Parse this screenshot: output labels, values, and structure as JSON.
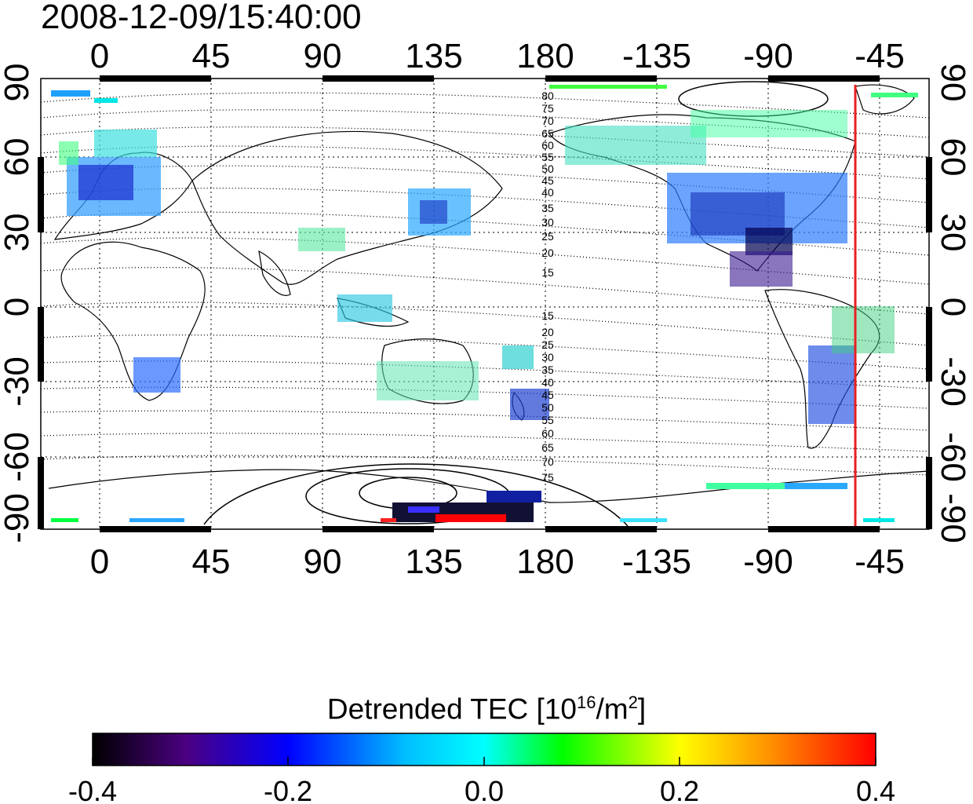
{
  "title": "2008-12-09/15:40:00",
  "map": {
    "top_axis_labels": [
      "0",
      "45",
      "90",
      "135",
      "180",
      "-135",
      "-90",
      "-45"
    ],
    "bottom_axis_labels": [
      "0",
      "45",
      "90",
      "135",
      "180",
      "-135",
      "-90",
      "-45"
    ],
    "left_axis_labels": [
      "90",
      "60",
      "30",
      "0",
      "-30",
      "-60",
      "-90"
    ],
    "right_axis_labels": [
      "90",
      "60",
      "30",
      "0",
      "-30",
      "-60",
      "-90"
    ],
    "contour_labels": [
      "80",
      "75",
      "70",
      "65",
      "60",
      "55",
      "50",
      "45",
      "40",
      "35",
      "30",
      "25",
      "20",
      "15",
      "15",
      "20",
      "25",
      "30",
      "35",
      "40",
      "45",
      "50",
      "55",
      "60",
      "65",
      "70",
      "75"
    ],
    "terminator_line_color": "#e62020"
  },
  "colorbar": {
    "label_main": "Detrended TEC  [10",
    "label_sup1": "16",
    "label_mid": "/m",
    "label_sup2": "2",
    "label_end": "]",
    "tick_labels": [
      "-0.4",
      "-0.2",
      "0.0",
      "0.2",
      "0.4"
    ],
    "colors": [
      "#000000",
      "#4b0082",
      "#0000ff",
      "#00ffff",
      "#00ff00",
      "#ffff00",
      "#ff8c00",
      "#ff0000"
    ]
  }
}
